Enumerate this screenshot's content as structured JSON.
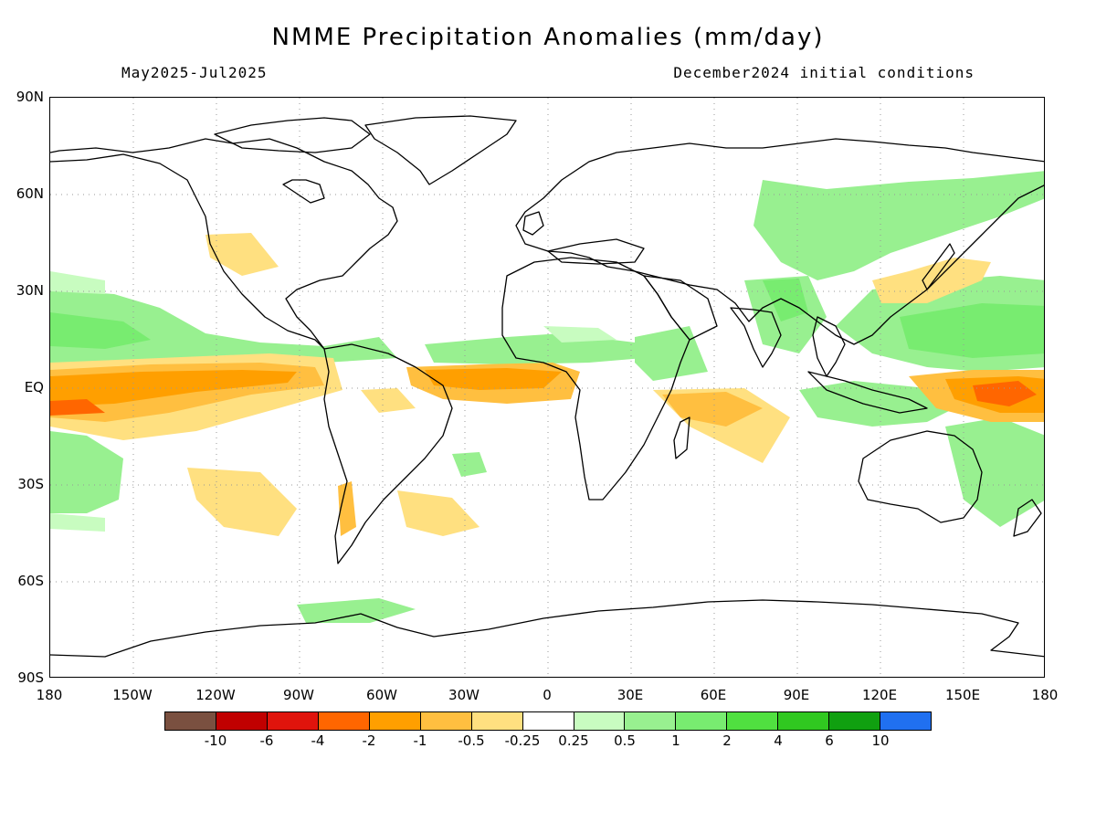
{
  "header": {
    "title": "NMME Precipitation Anomalies (mm/day)",
    "period": "May2025-Jul2025",
    "init": "December2024 initial conditions"
  },
  "map": {
    "lat_labels": [
      "90N",
      "60N",
      "30N",
      "EQ",
      "30S",
      "60S",
      "90S"
    ],
    "lon_labels": [
      "180",
      "150W",
      "120W",
      "90W",
      "60W",
      "30W",
      "0",
      "30E",
      "60E",
      "90E",
      "120E",
      "150E",
      "180"
    ]
  },
  "colorbar": {
    "colors": [
      "#7a5040",
      "#c00000",
      "#e0140c",
      "#ff6600",
      "#ff9f00",
      "#ffbf40",
      "#ffe080",
      "#ffffff",
      "#c8fcc0",
      "#98f090",
      "#78ec70",
      "#50e040",
      "#30c820",
      "#10a010",
      "#2070f0"
    ],
    "labels": [
      "-10",
      "-6",
      "-4",
      "-2",
      "-1",
      "-0.5",
      "-0.25",
      "0.25",
      "0.5",
      "1",
      "2",
      "4",
      "6",
      "10"
    ]
  },
  "legend_colors": {
    "dry_light": "#ffe080",
    "dry": "#ffbf40",
    "dry_strong": "#ff9f00",
    "dry_vstrong": "#ff6600",
    "wet_light": "#c8fcc0",
    "wet": "#98f090",
    "wet_strong": "#78ec70"
  }
}
